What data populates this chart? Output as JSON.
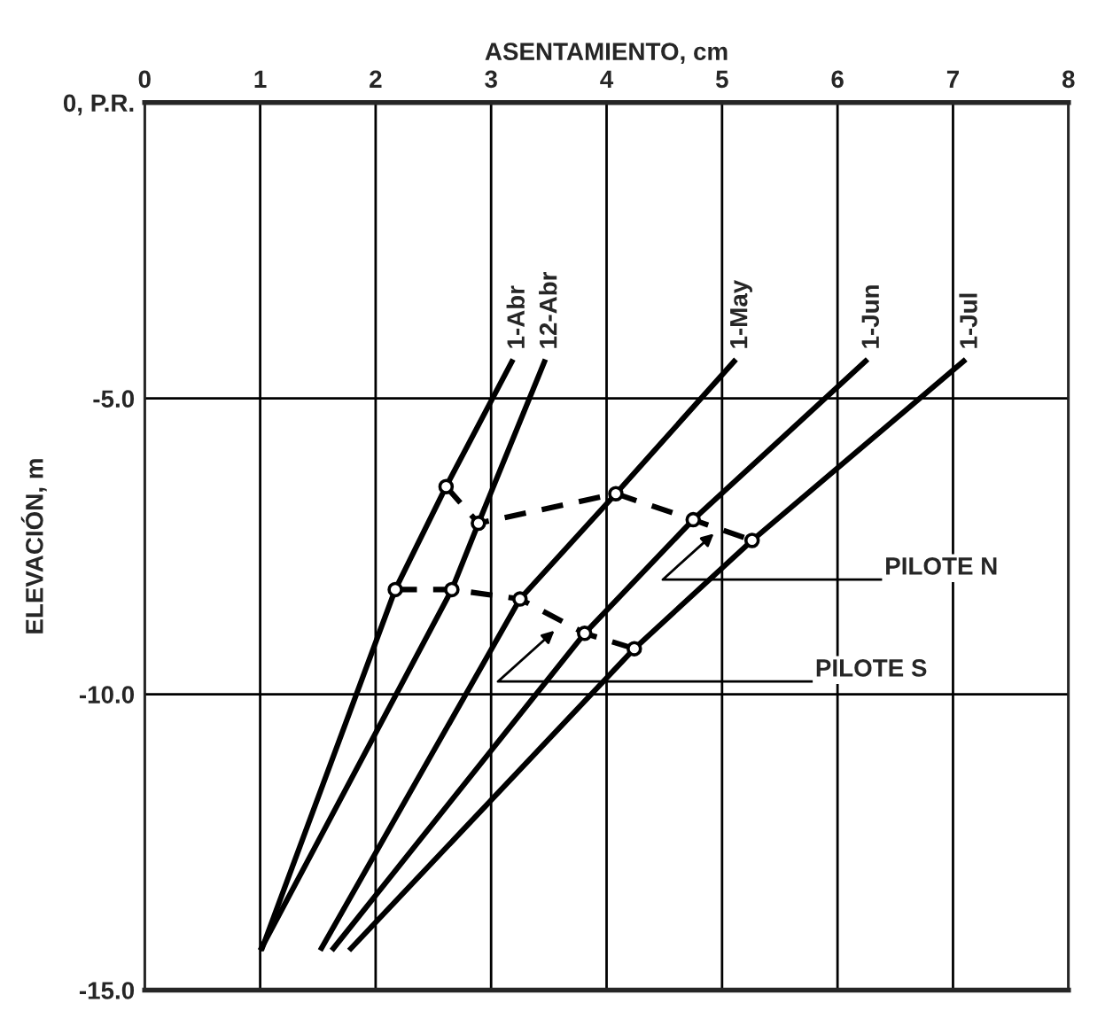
{
  "chart_data": {
    "type": "line",
    "xlabel": "ASENTAMIENTO, cm",
    "ylabel": "ELEVACIÓN, m",
    "xlim": [
      0,
      8
    ],
    "xticks": [
      0,
      1,
      2,
      3,
      4,
      5,
      6,
      7,
      8
    ],
    "ylim": [
      -15,
      0
    ],
    "yticks": [
      {
        "value": 0,
        "label": "0, P.R."
      },
      {
        "value": -5,
        "label": "-5.0"
      },
      {
        "value": -10,
        "label": "-10.0"
      },
      {
        "value": -15,
        "label": "-15.0"
      }
    ],
    "grid": true,
    "legend": false,
    "series": [
      {
        "color": "#000000",
        "x": [
          2.61,
          2.89,
          4.08,
          4.75,
          5.26
        ],
        "values": [
          -6.49,
          -7.11,
          -6.61,
          -7.05,
          -7.4
        ],
        "line_style": "dashed",
        "marker": "circle"
      },
      {
        "color": "#000000",
        "x": [
          2.17,
          2.66,
          3.25,
          3.81,
          4.24
        ],
        "values": [
          -8.23,
          -8.23,
          -8.39,
          -8.97,
          -9.23
        ],
        "line_style": "dashed",
        "marker": "circle"
      },
      {
        "name": "1-Abr",
        "color": "#000000",
        "x": [
          1.01,
          2.17,
          2.61,
          3.19
        ],
        "values": [
          -14.33,
          -8.23,
          -6.49,
          -4.34
        ],
        "line_style": "solid",
        "marker": "none"
      },
      {
        "name": "12-Abr",
        "color": "#000000",
        "x": [
          1.0,
          2.66,
          2.89,
          3.47
        ],
        "values": [
          -14.33,
          -8.23,
          -7.11,
          -4.34
        ],
        "line_style": "solid",
        "marker": "none"
      },
      {
        "name": "1-May",
        "color": "#000000",
        "x": [
          1.52,
          3.25,
          4.08,
          5.12
        ],
        "values": [
          -14.33,
          -8.39,
          -6.61,
          -4.34
        ],
        "line_style": "solid",
        "marker": "none"
      },
      {
        "name": "1-Jun",
        "color": "#000000",
        "x": [
          1.62,
          3.81,
          4.75,
          6.26
        ],
        "values": [
          -14.33,
          -8.97,
          -7.05,
          -4.34
        ],
        "line_style": "solid",
        "marker": "none"
      },
      {
        "name": "1-Jul",
        "color": "#000000",
        "x": [
          1.77,
          4.24,
          5.26,
          7.11
        ],
        "values": [
          -14.33,
          -9.23,
          -7.4,
          -4.34
        ],
        "line_style": "solid",
        "marker": "none"
      }
    ],
    "annotations": [
      {
        "text": "PILOTE N",
        "x": 4.96,
        "y": -7.23
      },
      {
        "text": "PILOTE S",
        "x": 3.58,
        "y": -8.87
      }
    ]
  }
}
